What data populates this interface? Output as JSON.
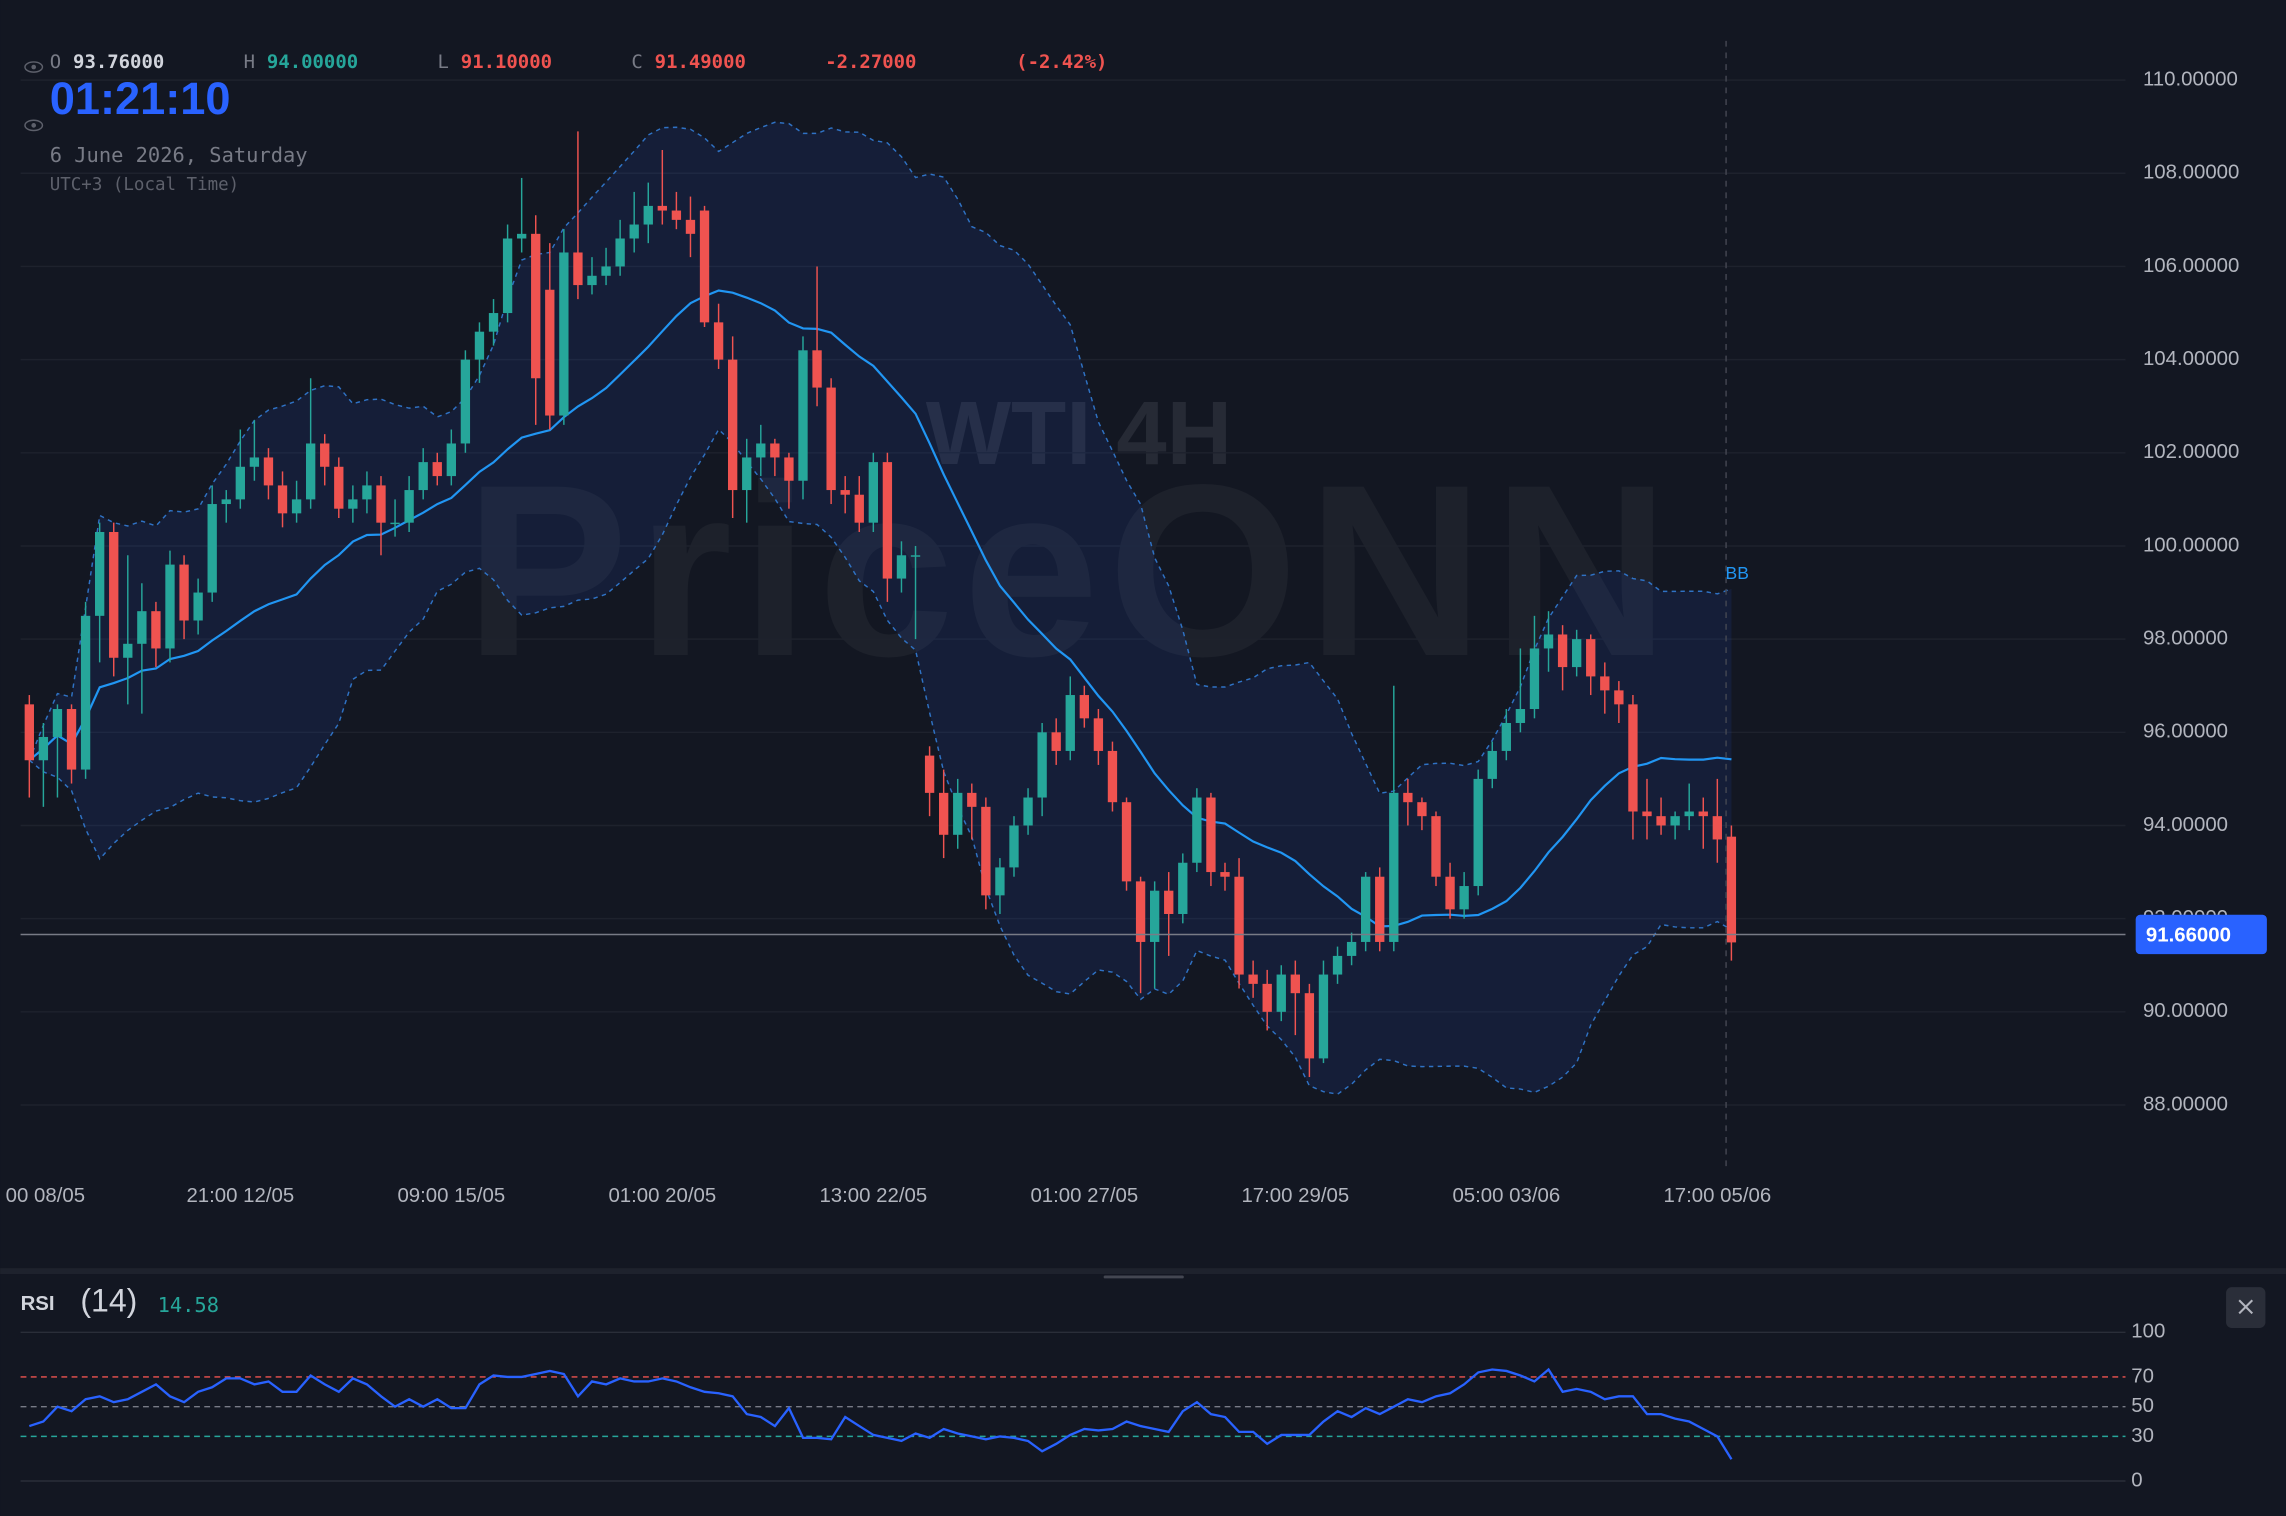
{
  "header": {
    "clock": "01:21:10",
    "date": "6 June 2026, Saturday",
    "timezone": "UTC+3 (Local Time)",
    "ohlc": [
      {
        "key": "O",
        "value": "93.76000",
        "color": "#d1d4dc"
      },
      {
        "key": "H",
        "value": "94.00000",
        "color": "#26a69a"
      },
      {
        "key": "L",
        "value": "91.10000",
        "color": "#ef5350"
      },
      {
        "key": "C",
        "value": "91.49000",
        "color": "#ef5350"
      }
    ],
    "change": "-2.27000",
    "change_pct": "(-2.42%)"
  },
  "watermark": {
    "symbol": "WTI 4H",
    "brand": "PriceONN"
  },
  "chart_data": [
    {
      "type": "candlestick",
      "indicator_label": "BB",
      "up_color": "#26a69a",
      "down_color": "#ef5350",
      "ylim": [
        87,
        111
      ],
      "yticks": [
        {
          "value": 88,
          "label": "88.00000"
        },
        {
          "value": 90,
          "label": "90.00000"
        },
        {
          "value": 92,
          "label": "92.00000"
        },
        {
          "value": 94,
          "label": "94.00000"
        },
        {
          "value": 96,
          "label": "96.00000"
        },
        {
          "value": 98,
          "label": "98.00000"
        },
        {
          "value": 100,
          "label": "100.00000"
        },
        {
          "value": 102,
          "label": "102.00000"
        },
        {
          "value": 104,
          "label": "104.00000"
        },
        {
          "value": 106,
          "label": "106.00000"
        },
        {
          "value": 108,
          "label": "108.00000"
        },
        {
          "value": 110,
          "label": "110.00000"
        }
      ],
      "xticks": [
        {
          "value": 0,
          "label": "00 08/05"
        },
        {
          "value": 15,
          "label": "21:00 12/05"
        },
        {
          "value": 30,
          "label": "09:00 15/05"
        },
        {
          "value": 45,
          "label": "01:00 20/05"
        },
        {
          "value": 60,
          "label": "13:00 22/05"
        },
        {
          "value": 75,
          "label": "01:00 27/05"
        },
        {
          "value": 90,
          "label": "17:00 29/05"
        },
        {
          "value": 105,
          "label": "05:00 03/06"
        },
        {
          "value": 120,
          "label": "17:00 05/06"
        }
      ],
      "current_price": {
        "value": 91.66,
        "label": "91.66000"
      },
      "ohlc": [
        [
          96.6,
          96.8,
          94.6,
          95.4
        ],
        [
          95.4,
          96.2,
          94.4,
          95.9
        ],
        [
          95.9,
          96.6,
          94.6,
          96.5
        ],
        [
          96.5,
          96.6,
          94.9,
          95.2
        ],
        [
          95.2,
          98.8,
          95.0,
          98.5
        ],
        [
          98.5,
          100.5,
          97.5,
          100.3
        ],
        [
          100.3,
          100.5,
          97.2,
          97.6
        ],
        [
          97.6,
          99.8,
          96.6,
          97.9
        ],
        [
          97.9,
          99.2,
          96.4,
          98.6
        ],
        [
          98.6,
          98.8,
          97.4,
          97.8
        ],
        [
          97.8,
          99.9,
          97.5,
          99.6
        ],
        [
          99.6,
          99.8,
          98.0,
          98.4
        ],
        [
          98.4,
          99.3,
          98.1,
          99.0
        ],
        [
          99.0,
          101.3,
          98.8,
          100.9
        ],
        [
          100.9,
          101.2,
          100.5,
          101.0
        ],
        [
          101.0,
          102.5,
          100.8,
          101.7
        ],
        [
          101.7,
          102.7,
          101.4,
          101.9
        ],
        [
          101.9,
          102.1,
          101.0,
          101.3
        ],
        [
          101.3,
          101.6,
          100.4,
          100.7
        ],
        [
          100.7,
          101.4,
          100.5,
          101.0
        ],
        [
          101.0,
          103.6,
          100.8,
          102.2
        ],
        [
          102.2,
          102.4,
          101.3,
          101.7
        ],
        [
          101.7,
          101.9,
          100.6,
          100.8
        ],
        [
          100.8,
          101.3,
          100.5,
          101.0
        ],
        [
          101.0,
          101.6,
          100.7,
          101.3
        ],
        [
          101.3,
          101.5,
          99.8,
          100.5
        ],
        [
          100.5,
          101.0,
          100.2,
          100.5
        ],
        [
          100.5,
          101.5,
          100.3,
          101.2
        ],
        [
          101.2,
          102.1,
          101.0,
          101.8
        ],
        [
          101.8,
          102.0,
          101.3,
          101.5
        ],
        [
          101.5,
          102.5,
          101.3,
          102.2
        ],
        [
          102.2,
          104.2,
          102.0,
          104.0
        ],
        [
          104.0,
          104.8,
          103.5,
          104.6
        ],
        [
          104.6,
          105.3,
          104.3,
          105.0
        ],
        [
          105.0,
          106.9,
          104.8,
          106.6
        ],
        [
          106.6,
          107.9,
          106.3,
          106.7
        ],
        [
          106.7,
          107.1,
          102.6,
          103.6
        ],
        [
          105.5,
          106.5,
          102.5,
          102.8
        ],
        [
          102.8,
          106.8,
          102.6,
          106.3
        ],
        [
          106.3,
          108.9,
          105.3,
          105.6
        ],
        [
          105.6,
          106.2,
          105.4,
          105.8
        ],
        [
          105.8,
          106.4,
          105.6,
          106.0
        ],
        [
          106.0,
          107.0,
          105.8,
          106.6
        ],
        [
          106.6,
          107.6,
          106.3,
          106.9
        ],
        [
          106.9,
          107.8,
          106.5,
          107.3
        ],
        [
          107.3,
          108.5,
          106.9,
          107.2
        ],
        [
          107.2,
          107.6,
          106.8,
          107.0
        ],
        [
          107.0,
          107.5,
          106.2,
          106.7
        ],
        [
          107.2,
          107.3,
          104.7,
          104.8
        ],
        [
          104.8,
          105.2,
          103.8,
          104.0
        ],
        [
          104.0,
          104.5,
          100.6,
          101.2
        ],
        [
          101.2,
          102.3,
          100.5,
          101.9
        ],
        [
          101.9,
          102.6,
          101.5,
          102.2
        ],
        [
          102.2,
          102.3,
          101.5,
          101.9
        ],
        [
          101.9,
          102.0,
          100.8,
          101.4
        ],
        [
          101.4,
          104.5,
          101.0,
          104.2
        ],
        [
          104.2,
          106.0,
          103.0,
          103.4
        ],
        [
          103.4,
          103.6,
          100.9,
          101.2
        ],
        [
          101.2,
          101.5,
          100.7,
          101.1
        ],
        [
          101.1,
          101.5,
          100.3,
          100.5
        ],
        [
          100.5,
          102.0,
          100.3,
          101.8
        ],
        [
          101.8,
          102.0,
          98.8,
          99.3
        ],
        [
          99.3,
          100.1,
          99.0,
          99.8
        ],
        [
          99.8,
          100.0,
          98.0,
          99.8
        ],
        [
          95.5,
          95.7,
          94.2,
          94.7
        ],
        [
          94.7,
          95.2,
          93.3,
          93.8
        ],
        [
          93.8,
          95.0,
          93.5,
          94.7
        ],
        [
          94.7,
          94.9,
          93.7,
          94.4
        ],
        [
          94.4,
          94.6,
          92.2,
          92.5
        ],
        [
          92.5,
          93.3,
          92.1,
          93.1
        ],
        [
          93.1,
          94.2,
          92.9,
          94.0
        ],
        [
          94.0,
          94.8,
          93.8,
          94.6
        ],
        [
          94.6,
          96.2,
          94.2,
          96.0
        ],
        [
          96.0,
          96.3,
          95.3,
          95.6
        ],
        [
          95.6,
          97.2,
          95.4,
          96.8
        ],
        [
          96.8,
          97.0,
          96.1,
          96.3
        ],
        [
          96.3,
          96.5,
          95.3,
          95.6
        ],
        [
          95.6,
          95.8,
          94.3,
          94.5
        ],
        [
          94.5,
          94.6,
          92.6,
          92.8
        ],
        [
          92.8,
          92.9,
          90.4,
          91.5
        ],
        [
          91.5,
          92.8,
          90.5,
          92.6
        ],
        [
          92.6,
          93.0,
          91.2,
          92.1
        ],
        [
          92.1,
          93.4,
          91.9,
          93.2
        ],
        [
          93.2,
          94.8,
          93.0,
          94.6
        ],
        [
          94.6,
          94.7,
          92.7,
          93.0
        ],
        [
          93.0,
          93.2,
          92.6,
          92.9
        ],
        [
          92.9,
          93.3,
          90.5,
          90.8
        ],
        [
          90.8,
          91.1,
          90.3,
          90.6
        ],
        [
          90.6,
          90.9,
          89.6,
          90.0
        ],
        [
          90.0,
          91.0,
          89.8,
          90.8
        ],
        [
          90.8,
          91.1,
          89.5,
          90.4
        ],
        [
          90.4,
          90.6,
          88.6,
          89.0
        ],
        [
          89.0,
          91.1,
          88.9,
          90.8
        ],
        [
          90.8,
          91.4,
          90.6,
          91.2
        ],
        [
          91.2,
          91.7,
          91.0,
          91.5
        ],
        [
          91.5,
          93.0,
          91.3,
          92.9
        ],
        [
          92.9,
          93.1,
          91.3,
          91.5
        ],
        [
          91.5,
          97.0,
          91.3,
          94.7
        ],
        [
          94.7,
          95.0,
          94.0,
          94.5
        ],
        [
          94.5,
          94.6,
          93.9,
          94.2
        ],
        [
          94.2,
          94.3,
          92.7,
          92.9
        ],
        [
          92.9,
          93.2,
          92.0,
          92.2
        ],
        [
          92.2,
          93.0,
          92.0,
          92.7
        ],
        [
          92.7,
          95.2,
          92.5,
          95.0
        ],
        [
          95.0,
          95.8,
          94.8,
          95.6
        ],
        [
          95.6,
          96.5,
          95.4,
          96.2
        ],
        [
          96.2,
          97.8,
          96.0,
          96.5
        ],
        [
          96.5,
          98.5,
          96.3,
          97.8
        ],
        [
          97.8,
          98.6,
          97.3,
          98.1
        ],
        [
          98.1,
          98.3,
          96.9,
          97.4
        ],
        [
          97.4,
          98.2,
          97.2,
          98.0
        ],
        [
          98.0,
          98.1,
          96.8,
          97.2
        ],
        [
          97.2,
          97.5,
          96.4,
          96.9
        ],
        [
          96.9,
          97.1,
          96.2,
          96.6
        ],
        [
          96.6,
          96.8,
          93.7,
          94.3
        ],
        [
          94.3,
          95.0,
          93.7,
          94.2
        ],
        [
          94.2,
          94.6,
          93.8,
          94.0
        ],
        [
          94.0,
          94.3,
          93.7,
          94.2
        ],
        [
          94.2,
          94.9,
          93.9,
          94.3
        ],
        [
          94.3,
          94.6,
          93.5,
          94.2
        ],
        [
          94.2,
          95.0,
          93.2,
          93.7
        ],
        [
          93.76,
          94.0,
          91.1,
          91.49
        ]
      ]
    },
    {
      "type": "line",
      "name": "RSI",
      "period_label": "(14)",
      "color": "#2962ff",
      "ylim": [
        0,
        100
      ],
      "yticks": [
        0,
        30,
        50,
        70,
        100
      ],
      "grid_colors": [
        "#2a2e39",
        "#26a69a",
        "#787b86",
        "#ef5350",
        "#2a2e39"
      ],
      "values": [
        37,
        40,
        50,
        47,
        55,
        57,
        53,
        55,
        60,
        65,
        57,
        53,
        60,
        63,
        69,
        69,
        65,
        67,
        60,
        60,
        71,
        65,
        60,
        69,
        65,
        57,
        50,
        55,
        50,
        55,
        49,
        49,
        65,
        71,
        70,
        70,
        72,
        74,
        72,
        57,
        67,
        65,
        69,
        67,
        67,
        69,
        67,
        63,
        60,
        59,
        57,
        45,
        43,
        37,
        49,
        29,
        29,
        28,
        43,
        37,
        31,
        29,
        27,
        32,
        29,
        35,
        32,
        30,
        28,
        30,
        29,
        27,
        20,
        25,
        31,
        35,
        34,
        35,
        40,
        37,
        35,
        33,
        47,
        53,
        45,
        43,
        33,
        33,
        25,
        31,
        31,
        31,
        40,
        47,
        43,
        49,
        45,
        50,
        55,
        53,
        57,
        59,
        65,
        73,
        75,
        74,
        71,
        67,
        75,
        60,
        62,
        60,
        55,
        57,
        57,
        45,
        45,
        42,
        40,
        35,
        30,
        14.58
      ]
    }
  ]
}
